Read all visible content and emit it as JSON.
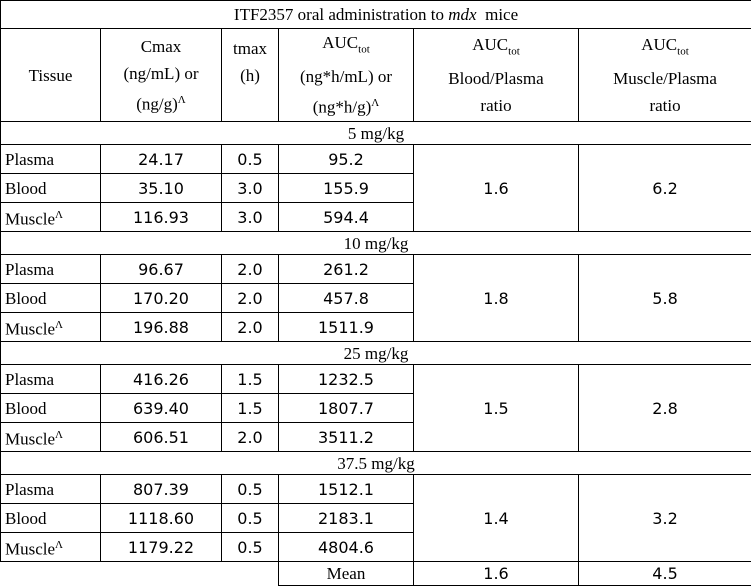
{
  "table": {
    "title": {
      "before": "ITF2357 oral administration to",
      "italic": "mdx",
      "after": "mice"
    },
    "headers": {
      "tissue": "Tissue",
      "cmax": [
        "Cmax",
        "(ng/mL) or",
        "(ng/g)",
        "Λ"
      ],
      "tmax": [
        "tmax",
        "(h)"
      ],
      "auc": [
        "AUC",
        "tot",
        "(ng*h/mL) or",
        "(ng*h/g)",
        "Λ"
      ],
      "blood_plasma": [
        "AUC",
        "tot",
        "Blood/Plasma",
        "ratio"
      ],
      "muscle_plasma": [
        "AUC",
        "tot",
        "Muscle/Plasma",
        "ratio"
      ]
    },
    "groups": [
      {
        "dose": "5 mg/kg",
        "rows": [
          {
            "tissue": "Plasma",
            "cmax": "24.17",
            "tmax": "0.5",
            "auc": "95.2"
          },
          {
            "tissue": "Blood",
            "cmax": "35.10",
            "tmax": "3.0",
            "auc": "155.9"
          },
          {
            "tissue": "Muscle",
            "sup": "Λ",
            "cmax": "116.93",
            "tmax": "3.0",
            "auc": "594.4"
          }
        ],
        "blood_plasma": "1.6",
        "muscle_plasma": "6.2"
      },
      {
        "dose": "10 mg/kg",
        "rows": [
          {
            "tissue": "Plasma",
            "cmax": "96.67",
            "tmax": "2.0",
            "auc": "261.2"
          },
          {
            "tissue": "Blood",
            "cmax": "170.20",
            "tmax": "2.0",
            "auc": "457.8"
          },
          {
            "tissue": "Muscle",
            "sup": "Λ",
            "cmax": "196.88",
            "tmax": "2.0",
            "auc": "1511.9"
          }
        ],
        "blood_plasma": "1.8",
        "muscle_plasma": "5.8"
      },
      {
        "dose": "25 mg/kg",
        "rows": [
          {
            "tissue": "Plasma",
            "cmax": "416.26",
            "tmax": "1.5",
            "auc": "1232.5"
          },
          {
            "tissue": "Blood",
            "cmax": "639.40",
            "tmax": "1.5",
            "auc": "1807.7"
          },
          {
            "tissue": "Muscle",
            "sup": "Λ",
            "cmax": "606.51",
            "tmax": "2.0",
            "auc": "3511.2"
          }
        ],
        "blood_plasma": "1.5",
        "muscle_plasma": "2.8"
      },
      {
        "dose": "37.5 mg/kg",
        "rows": [
          {
            "tissue": "Plasma",
            "cmax": "807.39",
            "tmax": "0.5",
            "auc": "1512.1"
          },
          {
            "tissue": "Blood",
            "cmax": "1118.60",
            "tmax": "0.5",
            "auc": "2183.1"
          },
          {
            "tissue": "Muscle",
            "sup": "Λ",
            "cmax": "1179.22",
            "tmax": "0.5",
            "auc": "4804.6"
          }
        ],
        "blood_plasma": "1.4",
        "muscle_plasma": "3.2"
      }
    ],
    "mean": {
      "label": "Mean",
      "blood_plasma": "1.6",
      "muscle_plasma": "4.5"
    }
  }
}
